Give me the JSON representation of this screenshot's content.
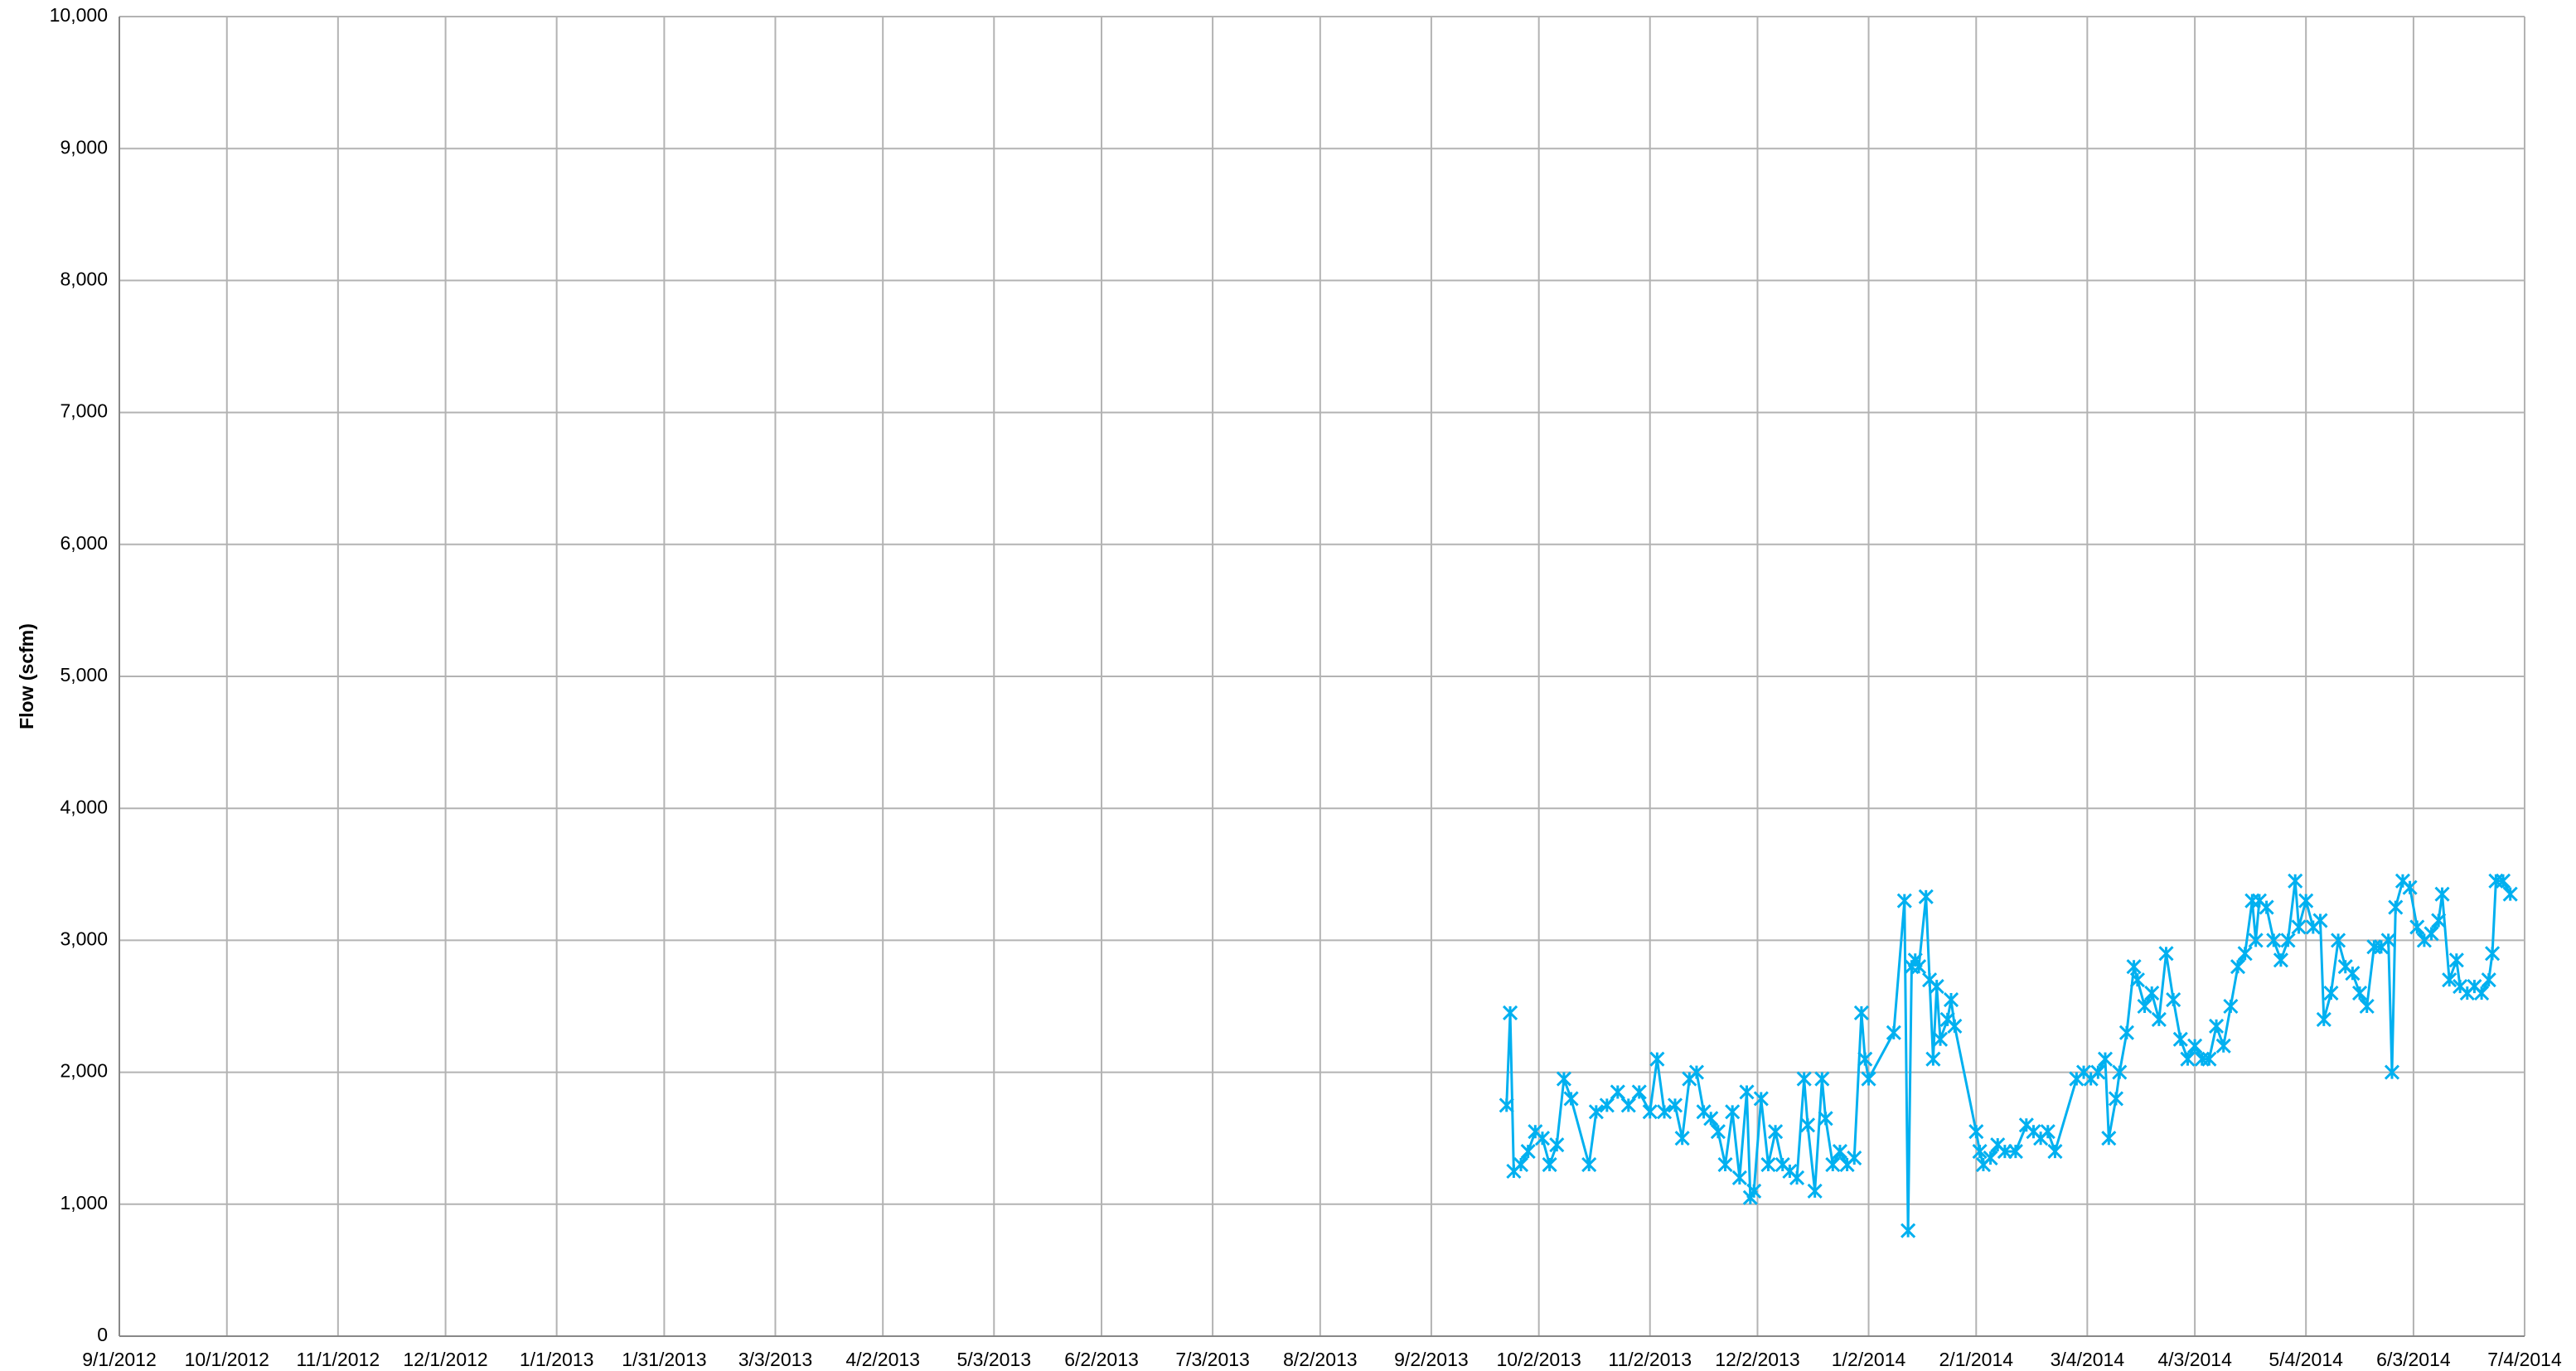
{
  "chart_data": {
    "type": "line",
    "ylabel": "Flow (scfm)",
    "xlim": [
      "9/1/2012",
      "7/4/2014"
    ],
    "xticks": [
      "9/1/2012",
      "10/1/2012",
      "11/1/2012",
      "12/1/2012",
      "1/1/2013",
      "1/31/2013",
      "3/3/2013",
      "4/2/2013",
      "5/3/2013",
      "6/2/2013",
      "7/3/2013",
      "8/2/2013",
      "9/2/2013",
      "10/2/2013",
      "11/2/2013",
      "12/2/2013",
      "1/2/2014",
      "2/1/2014",
      "3/4/2014",
      "4/3/2014",
      "5/4/2014",
      "6/3/2014",
      "7/4/2014"
    ],
    "ylim": [
      0,
      10000
    ],
    "yticks": [
      0,
      {
        "value": 1000,
        "label": "1,000"
      },
      {
        "value": 2000,
        "label": "2,000"
      },
      {
        "value": 3000,
        "label": "3,000"
      },
      {
        "value": 4000,
        "label": "4,000"
      },
      {
        "value": 5000,
        "label": "5,000"
      },
      {
        "value": 6000,
        "label": "6,000"
      },
      {
        "value": 7000,
        "label": "7,000"
      },
      {
        "value": 8000,
        "label": "8,000"
      },
      {
        "value": 9000,
        "label": "9,000"
      },
      {
        "value": 10000,
        "label": "10,000"
      }
    ],
    "grid": true,
    "x": [
      "9/23/2013",
      "9/24/2013",
      "9/25/2013",
      "9/27/2013",
      "9/29/2013",
      "10/1/2013",
      "10/3/2013",
      "10/5/2013",
      "10/7/2013",
      "10/9/2013",
      "10/11/2013",
      "10/16/2013",
      "10/18/2013",
      "10/21/2013",
      "10/24/2013",
      "10/27/2013",
      "10/30/2013",
      "11/2/2013",
      "11/4/2013",
      "11/6/2013",
      "11/9/2013",
      "11/11/2013",
      "11/13/2013",
      "11/15/2013",
      "11/17/2013",
      "11/19/2013",
      "11/21/2013",
      "11/23/2013",
      "11/25/2013",
      "11/27/2013",
      "11/29/2013",
      "11/30/2013",
      "12/1/2013",
      "12/3/2013",
      "12/5/2013",
      "12/7/2013",
      "12/9/2013",
      "12/11/2013",
      "12/13/2013",
      "12/15/2013",
      "12/16/2013",
      "12/18/2013",
      "12/20/2013",
      "12/21/2013",
      "12/23/2013",
      "12/25/2013",
      "12/27/2013",
      "12/29/2013",
      "12/31/2013",
      "1/1/2014",
      "1/2/2014",
      "1/9/2014",
      "1/12/2014",
      "1/13/2014",
      "1/14/2014",
      "1/15/2014",
      "1/16/2014",
      "1/18/2014",
      "1/19/2014",
      "1/20/2014",
      "1/21/2014",
      "1/22/2014",
      "1/24/2014",
      "1/25/2014",
      "1/26/2014",
      "2/1/2014",
      "2/2/2014",
      "2/3/2014",
      "2/5/2014",
      "2/7/2014",
      "2/9/2014",
      "2/12/2014",
      "2/15/2014",
      "2/17/2014",
      "2/19/2014",
      "2/21/2014",
      "2/23/2014",
      "3/1/2014",
      "3/3/2014",
      "3/5/2014",
      "3/7/2014",
      "3/9/2014",
      "3/10/2014",
      "3/12/2014",
      "3/13/2014",
      "3/15/2014",
      "3/17/2014",
      "3/18/2014",
      "3/20/2014",
      "3/22/2014",
      "3/24/2014",
      "3/26/2014",
      "3/28/2014",
      "3/30/2014",
      "4/1/2014",
      "4/3/2014",
      "4/5/2014",
      "4/7/2014",
      "4/9/2014",
      "4/11/2014",
      "4/13/2014",
      "4/15/2014",
      "4/17/2014",
      "4/19/2014",
      "4/20/2014",
      "4/21/2014",
      "4/23/2014",
      "4/25/2014",
      "4/27/2014",
      "4/29/2014",
      "5/1/2014",
      "5/2/2014",
      "5/4/2014",
      "5/6/2014",
      "5/8/2014",
      "5/9/2014",
      "5/11/2014",
      "5/13/2014",
      "5/15/2014",
      "5/17/2014",
      "5/19/2014",
      "5/21/2014",
      "5/23/2014",
      "5/25/2014",
      "5/27/2014",
      "5/28/2014",
      "5/29/2014",
      "5/31/2014",
      "6/2/2014",
      "6/4/2014",
      "6/6/2014",
      "6/8/2014",
      "6/10/2014",
      "6/11/2014",
      "6/13/2014",
      "6/15/2014",
      "6/16/2014",
      "6/18/2014",
      "6/20/2014",
      "6/22/2014",
      "6/24/2014",
      "6/25/2014",
      "6/26/2014",
      "6/28/2014",
      "6/30/2014"
    ],
    "series": [
      {
        "color": "#00b0f0",
        "values": [
          1750,
          2450,
          1250,
          1300,
          1400,
          1550,
          1500,
          1300,
          1450,
          1950,
          1800,
          1300,
          1700,
          1750,
          1850,
          1750,
          1850,
          1700,
          2100,
          1700,
          1750,
          1500,
          1950,
          2000,
          1700,
          1650,
          1550,
          1300,
          1700,
          1200,
          1850,
          1050,
          1100,
          1800,
          1300,
          1550,
          1300,
          1250,
          1200,
          1950,
          1600,
          1100,
          1950,
          1650,
          1300,
          1400,
          1300,
          1350,
          2450,
          2100,
          1950,
          2300,
          3300,
          800,
          2800,
          2850,
          2800,
          3330,
          2700,
          2100,
          2650,
          2250,
          2400,
          2550,
          2350,
          1550,
          1400,
          1300,
          1350,
          1450,
          1400,
          1400,
          1600,
          1550,
          1500,
          1550,
          1400,
          1950,
          2000,
          1950,
          2000,
          2100,
          1500,
          1800,
          2000,
          2300,
          2800,
          2700,
          2500,
          2600,
          2400,
          2900,
          2550,
          2250,
          2100,
          2200,
          2100,
          2100,
          2350,
          2200,
          2500,
          2800,
          2900,
          3300,
          3000,
          3300,
          3250,
          3000,
          2850,
          3000,
          3450,
          3100,
          3300,
          3100,
          3150,
          2400,
          2600,
          3000,
          2800,
          2750,
          2600,
          2500,
          2950,
          2950,
          3000,
          2000,
          3250,
          3450,
          3400,
          3100,
          3000,
          3050,
          3150,
          3350,
          2700,
          2850,
          2650,
          2600,
          2650,
          2600,
          2700,
          2900,
          3450,
          3450,
          3350
        ]
      }
    ]
  }
}
